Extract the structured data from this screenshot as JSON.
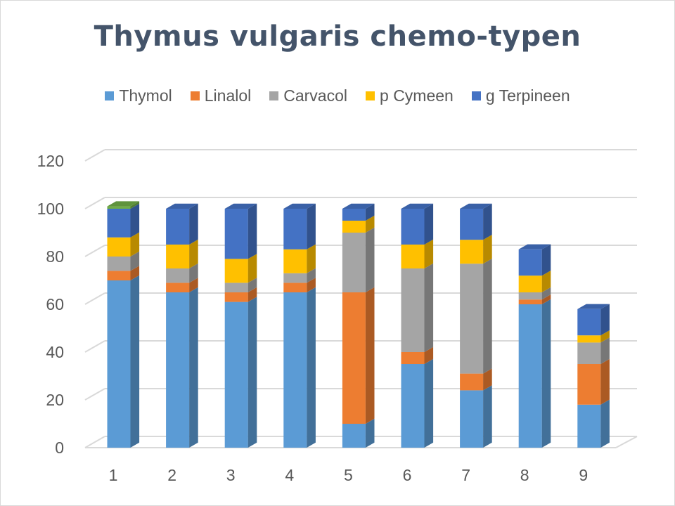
{
  "chart_data": {
    "type": "bar",
    "stacked": true,
    "title": "Thymus vulgaris chemo-typen",
    "categories": [
      "1",
      "2",
      "3",
      "4",
      "5",
      "6",
      "7",
      "8",
      "9"
    ],
    "series": [
      {
        "name": "Thymol",
        "color": "#5b9bd5",
        "values": [
          70,
          65,
          61,
          65,
          10,
          35,
          24,
          60,
          18
        ]
      },
      {
        "name": "Linalol",
        "color": "#ed7d31",
        "values": [
          4,
          4,
          4,
          4,
          55,
          5,
          7,
          2,
          17
        ]
      },
      {
        "name": "Carvacol",
        "color": "#a5a5a5",
        "values": [
          6,
          6,
          4,
          4,
          25,
          35,
          46,
          3,
          9
        ]
      },
      {
        "name": "p Cymeen",
        "color": "#ffc000",
        "values": [
          8,
          10,
          10,
          10,
          5,
          10,
          10,
          7,
          3
        ]
      },
      {
        "name": "g Terpineen",
        "color": "#4472c4",
        "values": [
          12,
          15,
          21,
          17,
          5,
          15,
          13,
          11,
          11
        ]
      }
    ],
    "extra_segments": [
      {
        "category": "1",
        "color": "#70ad47",
        "value": 1
      }
    ],
    "ylim": [
      0,
      120
    ],
    "yticks": [
      0,
      20,
      40,
      60,
      80,
      100,
      120
    ],
    "grid": true,
    "legend_position": "top"
  }
}
